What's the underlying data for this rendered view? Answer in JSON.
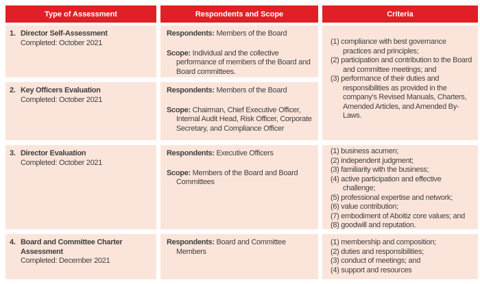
{
  "table": {
    "headers": [
      {
        "label": "Type of Assessment"
      },
      {
        "label": "Respondents and Scope"
      },
      {
        "label": "Criteria"
      }
    ],
    "labels": {
      "respondents": "Respondents:",
      "scope": "Scope:"
    },
    "rows": [
      {
        "number": "1.",
        "title": "Director Self-Assessment",
        "completed": "Completed: October 2021",
        "respondents": "Members of the Board",
        "scope": "Individual and the collective performance of members of the Board and Board committees."
      },
      {
        "number": "2.",
        "title": "Key Officers Evaluation",
        "completed": "Completed: October 2021",
        "respondents": "Members of the Board",
        "scope": "Chairman, Chief Executive Officer, Internal Audit Head, Risk Officer, Corporate Secretary, and Compliance Officer"
      },
      {
        "number": "3.",
        "title": "Director Evaluation",
        "completed": "Completed: October 2021",
        "respondents": "Executive Officers",
        "scope": "Members of the Board and Board Committees"
      },
      {
        "number": "4.",
        "title": "Board and Committee Charter Assessment",
        "completed": "Completed: December 2021",
        "respondents": "Board and Committee Members"
      }
    ],
    "criteria": {
      "rows_1_2": [
        "(1) compliance with best governance practices and principles;",
        "(2) participation and contribution to the Board and committee meetings; and",
        "(3) performance of their duties and responsibilities as provided in the company’s Revised Manuals, Charters, Amended Articles, and Amended By-Laws."
      ],
      "row_3": [
        "(1) business acumen;",
        "(2) independent judgment;",
        "(3) familiarity with the business;",
        "(4) active participation and effective challenge;",
        "(5) professional expertise and network;",
        "(6) value contribution;",
        "(7) embodiment of Aboitiz core values; and",
        "(8) goodwill and reputation."
      ],
      "row_4": [
        "(1) membership and composition;",
        "(2) duties and responsibilities;",
        "(3) conduct of meetings; and",
        "(4) support and resources"
      ]
    },
    "colors": {
      "header_bg": "#E11F26",
      "row_bg": "#FBE5DB",
      "header_text": "#FFFFFF",
      "body_text": "#3E3E3E"
    }
  }
}
